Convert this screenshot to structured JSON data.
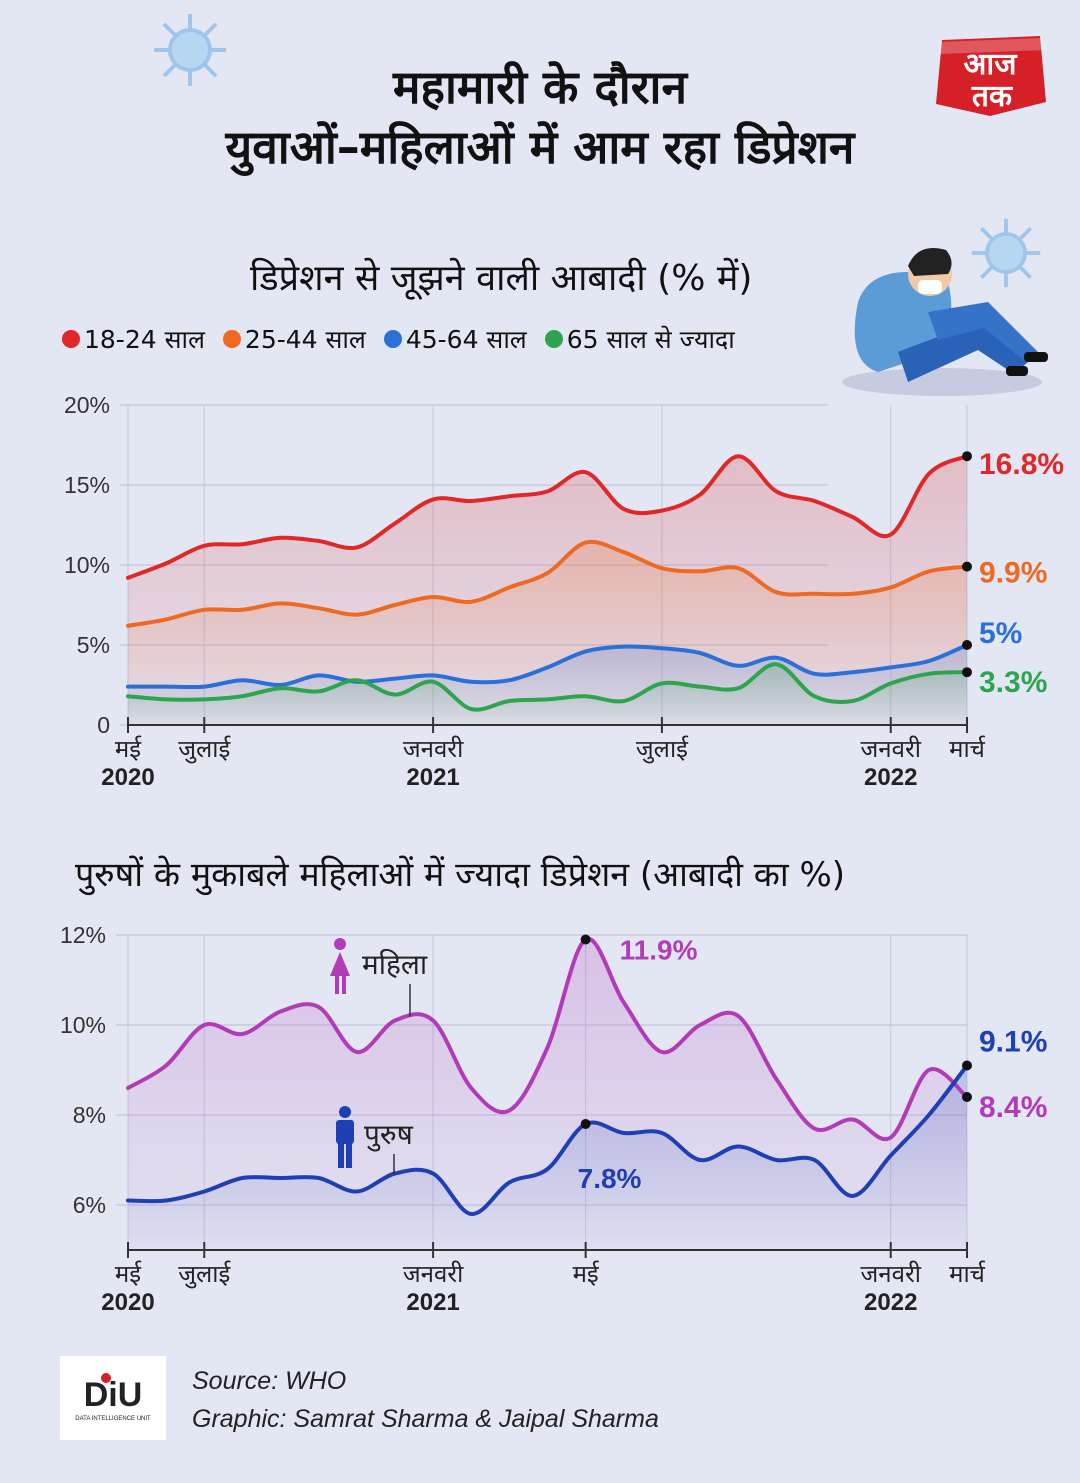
{
  "title_line1": "महामारी के दौरान",
  "title_line2": "युवाओं–महिलाओं में आम रहा डिप्रेशन",
  "logo": {
    "line1": "आज",
    "line2": "तक",
    "color": "#d62027"
  },
  "source": "Source: WHO",
  "graphic_credit": "Graphic: Samrat Sharma & Jaipal Sharma",
  "diu_logo": {
    "text": "DiU",
    "subtext": "DATA INTELLIGENCE UNIT"
  },
  "colors": {
    "red": "#e02828",
    "orange": "#ee6a22",
    "blue": "#2b6fd8",
    "green": "#2ea44f",
    "purple": "#b23cb8",
    "navy": "#1f3fb4"
  },
  "chart_data": [
    {
      "type": "line",
      "title": "डिप्रेशन से जूझने वाली आबादी (% में)",
      "x_labels": [
        {
          "month": "मई",
          "year": "2020"
        },
        {
          "month": "जुलाई",
          "year": ""
        },
        {
          "month": "जनवरी",
          "year": "2021"
        },
        {
          "month": "जुलाई",
          "year": ""
        },
        {
          "month": "जनवरी",
          "year": "2022"
        },
        {
          "month": "मार्च",
          "year": ""
        }
      ],
      "x_tick_index": [
        0,
        2,
        8,
        14,
        20,
        22
      ],
      "ylim": [
        0,
        20
      ],
      "yticks": [
        "0",
        "5%",
        "10%",
        "15%",
        "20%"
      ],
      "ytick_values": [
        0,
        5,
        10,
        15,
        20
      ],
      "series": [
        {
          "name": "18-24 साल",
          "color_key": "red",
          "end_label": "16.8%",
          "values": [
            9.2,
            10.1,
            11.2,
            11.3,
            11.7,
            11.5,
            11.1,
            12.6,
            14.1,
            14.0,
            14.3,
            14.6,
            15.8,
            13.5,
            13.4,
            14.4,
            16.8,
            14.6,
            14.0,
            13.0,
            11.9,
            15.7,
            16.8
          ]
        },
        {
          "name": "25-44 साल",
          "color_key": "orange",
          "end_label": "9.9%",
          "values": [
            6.2,
            6.6,
            7.2,
            7.2,
            7.6,
            7.3,
            6.9,
            7.5,
            8.0,
            7.7,
            8.6,
            9.5,
            11.4,
            10.8,
            9.8,
            9.6,
            9.8,
            8.3,
            8.2,
            8.2,
            8.6,
            9.6,
            9.9
          ]
        },
        {
          "name": "45-64 साल",
          "color_key": "blue",
          "end_label": "5%",
          "values": [
            2.4,
            2.4,
            2.4,
            2.8,
            2.5,
            3.1,
            2.7,
            2.9,
            3.1,
            2.7,
            2.8,
            3.6,
            4.6,
            4.9,
            4.8,
            4.5,
            3.7,
            4.2,
            3.2,
            3.3,
            3.6,
            4.0,
            5.0
          ]
        },
        {
          "name": "65 साल से ज्यादा",
          "color_key": "green",
          "end_label": "3.3%",
          "values": [
            1.8,
            1.6,
            1.6,
            1.8,
            2.3,
            2.1,
            2.8,
            1.9,
            2.7,
            1.0,
            1.5,
            1.6,
            1.8,
            1.5,
            2.6,
            2.4,
            2.3,
            3.8,
            1.8,
            1.5,
            2.6,
            3.2,
            3.3
          ]
        }
      ]
    },
    {
      "type": "line",
      "title": "पुरुषों के मुकाबले महिलाओं में ज्यादा डिप्रेशन (आबादी का %)",
      "x_labels": [
        {
          "month": "मई",
          "year": "2020"
        },
        {
          "month": "जुलाई",
          "year": ""
        },
        {
          "month": "जनवरी",
          "year": "2021"
        },
        {
          "month": "मई",
          "year": ""
        },
        {
          "month": "जनवरी",
          "year": "2022"
        },
        {
          "month": "मार्च",
          "year": ""
        }
      ],
      "x_tick_index": [
        0,
        2,
        8,
        12,
        20,
        22
      ],
      "ylim": [
        5,
        12
      ],
      "yticks": [
        "6%",
        "8%",
        "10%",
        "12%"
      ],
      "ytick_values": [
        6,
        8,
        10,
        12
      ],
      "series": [
        {
          "name": "महिला",
          "color_key": "purple",
          "end_label": "8.4%",
          "peak_label": "11.9%",
          "peak_index": 12,
          "values": [
            8.6,
            9.1,
            10.0,
            9.8,
            10.3,
            10.4,
            9.4,
            10.1,
            10.1,
            8.6,
            8.1,
            9.5,
            11.9,
            10.5,
            9.4,
            10.0,
            10.2,
            8.8,
            7.7,
            7.9,
            7.5,
            9.0,
            8.4
          ]
        },
        {
          "name": "पुरुष",
          "color_key": "navy",
          "end_label": "9.1%",
          "peak_label": "7.8%",
          "peak_index": 12,
          "values": [
            6.1,
            6.1,
            6.3,
            6.6,
            6.6,
            6.6,
            6.3,
            6.7,
            6.7,
            5.8,
            6.5,
            6.8,
            7.8,
            7.6,
            7.6,
            7.0,
            7.3,
            7.0,
            7.0,
            6.2,
            7.1,
            8.0,
            9.1
          ]
        }
      ]
    }
  ]
}
